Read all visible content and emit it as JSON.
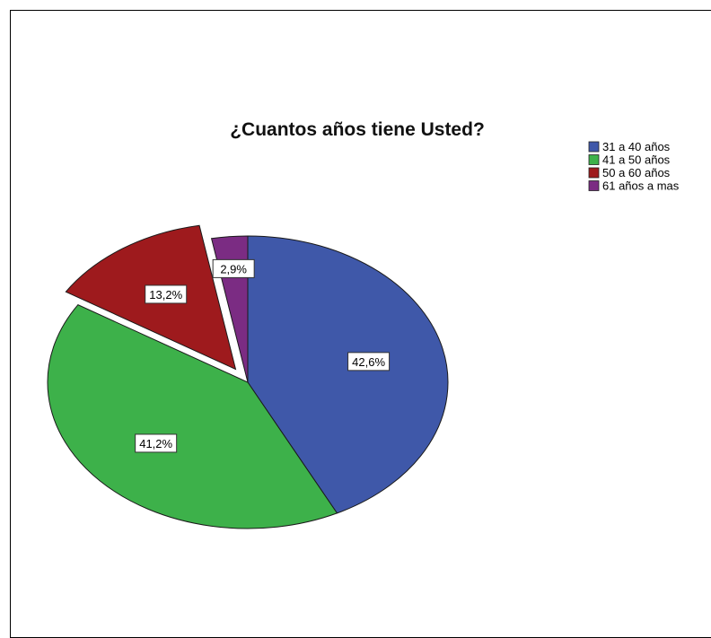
{
  "chart_data": {
    "type": "pie",
    "title": "¿Cuantos años  tiene Usted?",
    "categories": [
      "31 a 40 años",
      "41 a 50 años",
      "50 a 60 años",
      "61 años a mas"
    ],
    "values": [
      42.6,
      41.2,
      13.2,
      2.9
    ],
    "data_labels": [
      "42,6%",
      "41,2%",
      "13,2%",
      "2,9%"
    ],
    "exploded": [
      false,
      false,
      true,
      false
    ],
    "colors": [
      "#3F58A9",
      "#3DB14A",
      "#9E1A1D",
      "#7B2C83"
    ],
    "start_angle_deg": 0,
    "direction": "clockwise",
    "legend_position": "top-right"
  }
}
